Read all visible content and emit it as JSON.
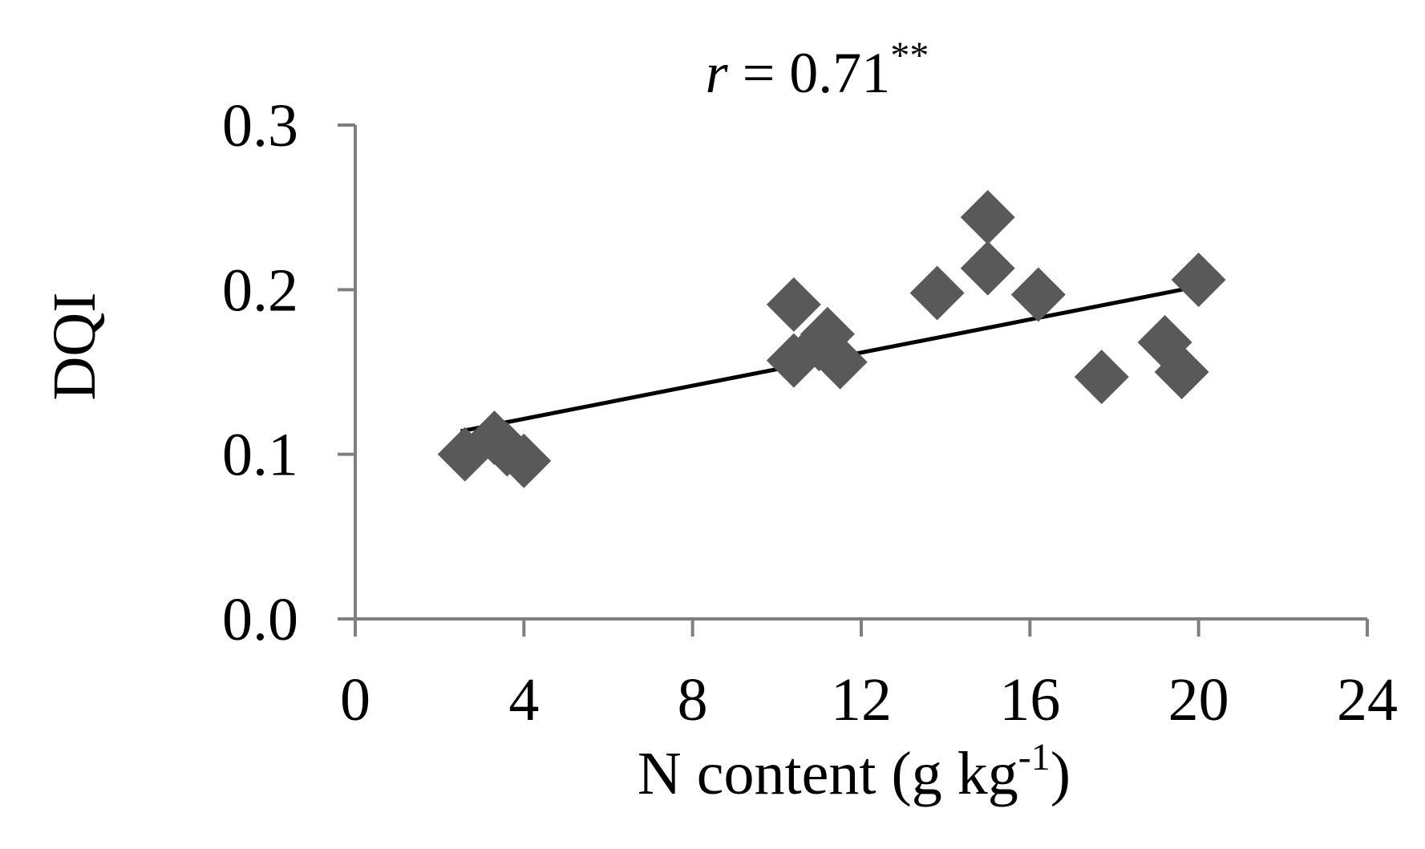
{
  "chart_data": {
    "type": "scatter",
    "title": "",
    "annotation": {
      "italic_part": "r",
      "text_part": " = 0.71",
      "superscript": "**"
    },
    "xlabel": {
      "text": "N content (g kg",
      "superscript": "-1",
      "suffix": ")"
    },
    "ylabel": "DQI",
    "xlim": [
      0,
      24
    ],
    "ylim": [
      0.0,
      0.3
    ],
    "x_ticks": [
      0,
      4,
      8,
      12,
      16,
      20,
      24
    ],
    "x_tick_labels": [
      "0",
      "4",
      "8",
      "12",
      "16",
      "20",
      "24"
    ],
    "y_ticks": [
      0.0,
      0.1,
      0.2,
      0.3
    ],
    "y_tick_labels": [
      "0.0",
      "0.1",
      "0.2",
      "0.3"
    ],
    "grid": false,
    "series": [
      {
        "marker": "diamond",
        "color": "#595959",
        "points": [
          {
            "x": 2.6,
            "y": 0.1
          },
          {
            "x": 3.3,
            "y": 0.11
          },
          {
            "x": 3.6,
            "y": 0.103
          },
          {
            "x": 4.0,
            "y": 0.096
          },
          {
            "x": 10.4,
            "y": 0.191
          },
          {
            "x": 10.4,
            "y": 0.157
          },
          {
            "x": 11.0,
            "y": 0.167
          },
          {
            "x": 11.2,
            "y": 0.173
          },
          {
            "x": 11.5,
            "y": 0.156
          },
          {
            "x": 13.8,
            "y": 0.198
          },
          {
            "x": 15.0,
            "y": 0.244
          },
          {
            "x": 15.0,
            "y": 0.213
          },
          {
            "x": 16.2,
            "y": 0.197
          },
          {
            "x": 17.7,
            "y": 0.147
          },
          {
            "x": 19.2,
            "y": 0.168
          },
          {
            "x": 19.6,
            "y": 0.15
          },
          {
            "x": 20.0,
            "y": 0.206
          }
        ]
      }
    ],
    "trendline": {
      "color": "#000000",
      "from": {
        "x": 2.5,
        "y": 0.114
      },
      "to": {
        "x": 20.0,
        "y": 0.202
      }
    },
    "axis_color": "#7f7f7f"
  }
}
